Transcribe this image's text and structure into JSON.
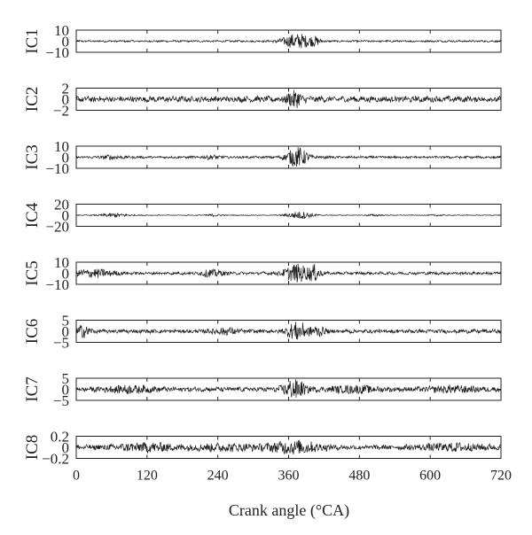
{
  "chart_data": {
    "type": "line",
    "xlabel": "Crank angle (°CA)",
    "xlim": [
      0,
      720
    ],
    "xticks": [
      0,
      120,
      240,
      360,
      480,
      600,
      720
    ],
    "xtick_labels": [
      "0",
      "120",
      "240",
      "360",
      "480",
      "600",
      "720"
    ],
    "line_color": "#1a1a1a",
    "grid": false,
    "panels": [
      {
        "ylabel": "IC1",
        "ylim": [
          -10,
          10
        ],
        "yticks": [
          10,
          0,
          -10
        ],
        "ytick_labels": [
          "10",
          "0",
          "−10"
        ],
        "baseline": 0.8,
        "bursts": [
          {
            "center": 375,
            "width": 25,
            "amplitude": 7
          },
          {
            "center": 405,
            "width": 8,
            "amplitude": 3
          }
        ]
      },
      {
        "ylabel": "IC2",
        "ylim": [
          -2,
          2
        ],
        "yticks": [
          2,
          0,
          -2
        ],
        "ytick_labels": [
          "2",
          "0",
          "−2"
        ],
        "baseline": 0.5,
        "bursts": [
          {
            "center": 370,
            "width": 12,
            "amplitude": 1.4
          }
        ]
      },
      {
        "ylabel": "IC3",
        "ylim": [
          -10,
          10
        ],
        "yticks": [
          10,
          0,
          -10
        ],
        "ytick_labels": [
          "10",
          "0",
          "−10"
        ],
        "baseline": 1.0,
        "bursts": [
          {
            "center": 375,
            "width": 18,
            "amplitude": 9
          },
          {
            "center": 60,
            "width": 20,
            "amplitude": 1.5
          },
          {
            "center": 230,
            "width": 15,
            "amplitude": 1.5
          }
        ]
      },
      {
        "ylabel": "IC4",
        "ylim": [
          -20,
          20
        ],
        "yticks": [
          20,
          0,
          -20
        ],
        "ytick_labels": [
          "20",
          "0",
          "−20"
        ],
        "baseline": 0.6,
        "bursts": [
          {
            "center": 380,
            "width": 22,
            "amplitude": 7
          },
          {
            "center": 65,
            "width": 25,
            "amplitude": 3.5
          },
          {
            "center": 235,
            "width": 15,
            "amplitude": 2
          },
          {
            "center": 505,
            "width": 15,
            "amplitude": 1.5
          },
          {
            "center": 610,
            "width": 12,
            "amplitude": 1.2
          }
        ]
      },
      {
        "ylabel": "IC5",
        "ylim": [
          -10,
          10
        ],
        "yticks": [
          10,
          0,
          -10
        ],
        "ytick_labels": [
          "10",
          "0",
          "−10"
        ],
        "baseline": 1.2,
        "bursts": [
          {
            "center": 375,
            "width": 22,
            "amplitude": 8
          },
          {
            "center": 405,
            "width": 10,
            "amplitude": 6
          },
          {
            "center": 30,
            "width": 35,
            "amplitude": 3.5
          },
          {
            "center": 230,
            "width": 20,
            "amplitude": 3
          }
        ]
      },
      {
        "ylabel": "IC6",
        "ylim": [
          -5,
          5
        ],
        "yticks": [
          5,
          0,
          -5
        ],
        "ytick_labels": [
          "5",
          "0",
          "−5"
        ],
        "baseline": 0.8,
        "bursts": [
          {
            "center": 375,
            "width": 18,
            "amplitude": 4
          },
          {
            "center": 12,
            "width": 12,
            "amplitude": 2.5
          },
          {
            "center": 410,
            "width": 12,
            "amplitude": 2
          },
          {
            "center": 250,
            "width": 25,
            "amplitude": 1.2
          }
        ]
      },
      {
        "ylabel": "IC7",
        "ylim": [
          -5,
          5
        ],
        "yticks": [
          5,
          0,
          -5
        ],
        "ytick_labels": [
          "5",
          "0",
          "−5"
        ],
        "baseline": 1.0,
        "bursts": [
          {
            "center": 370,
            "width": 18,
            "amplitude": 4.2
          },
          {
            "center": 90,
            "width": 40,
            "amplitude": 1.2
          },
          {
            "center": 470,
            "width": 40,
            "amplitude": 1.2
          },
          {
            "center": 640,
            "width": 40,
            "amplitude": 1.1
          }
        ]
      },
      {
        "ylabel": "IC8",
        "ylim": [
          -0.2,
          0.2
        ],
        "yticks": [
          0.2,
          0,
          -0.2
        ],
        "ytick_labels": [
          "0.2",
          "0",
          "−0.2"
        ],
        "baseline": 0.04,
        "bursts": [
          {
            "center": 370,
            "width": 45,
            "amplitude": 0.1
          },
          {
            "center": 120,
            "width": 60,
            "amplitude": 0.06
          },
          {
            "center": 250,
            "width": 50,
            "amplitude": 0.05
          },
          {
            "center": 640,
            "width": 60,
            "amplitude": 0.05
          }
        ]
      }
    ]
  }
}
